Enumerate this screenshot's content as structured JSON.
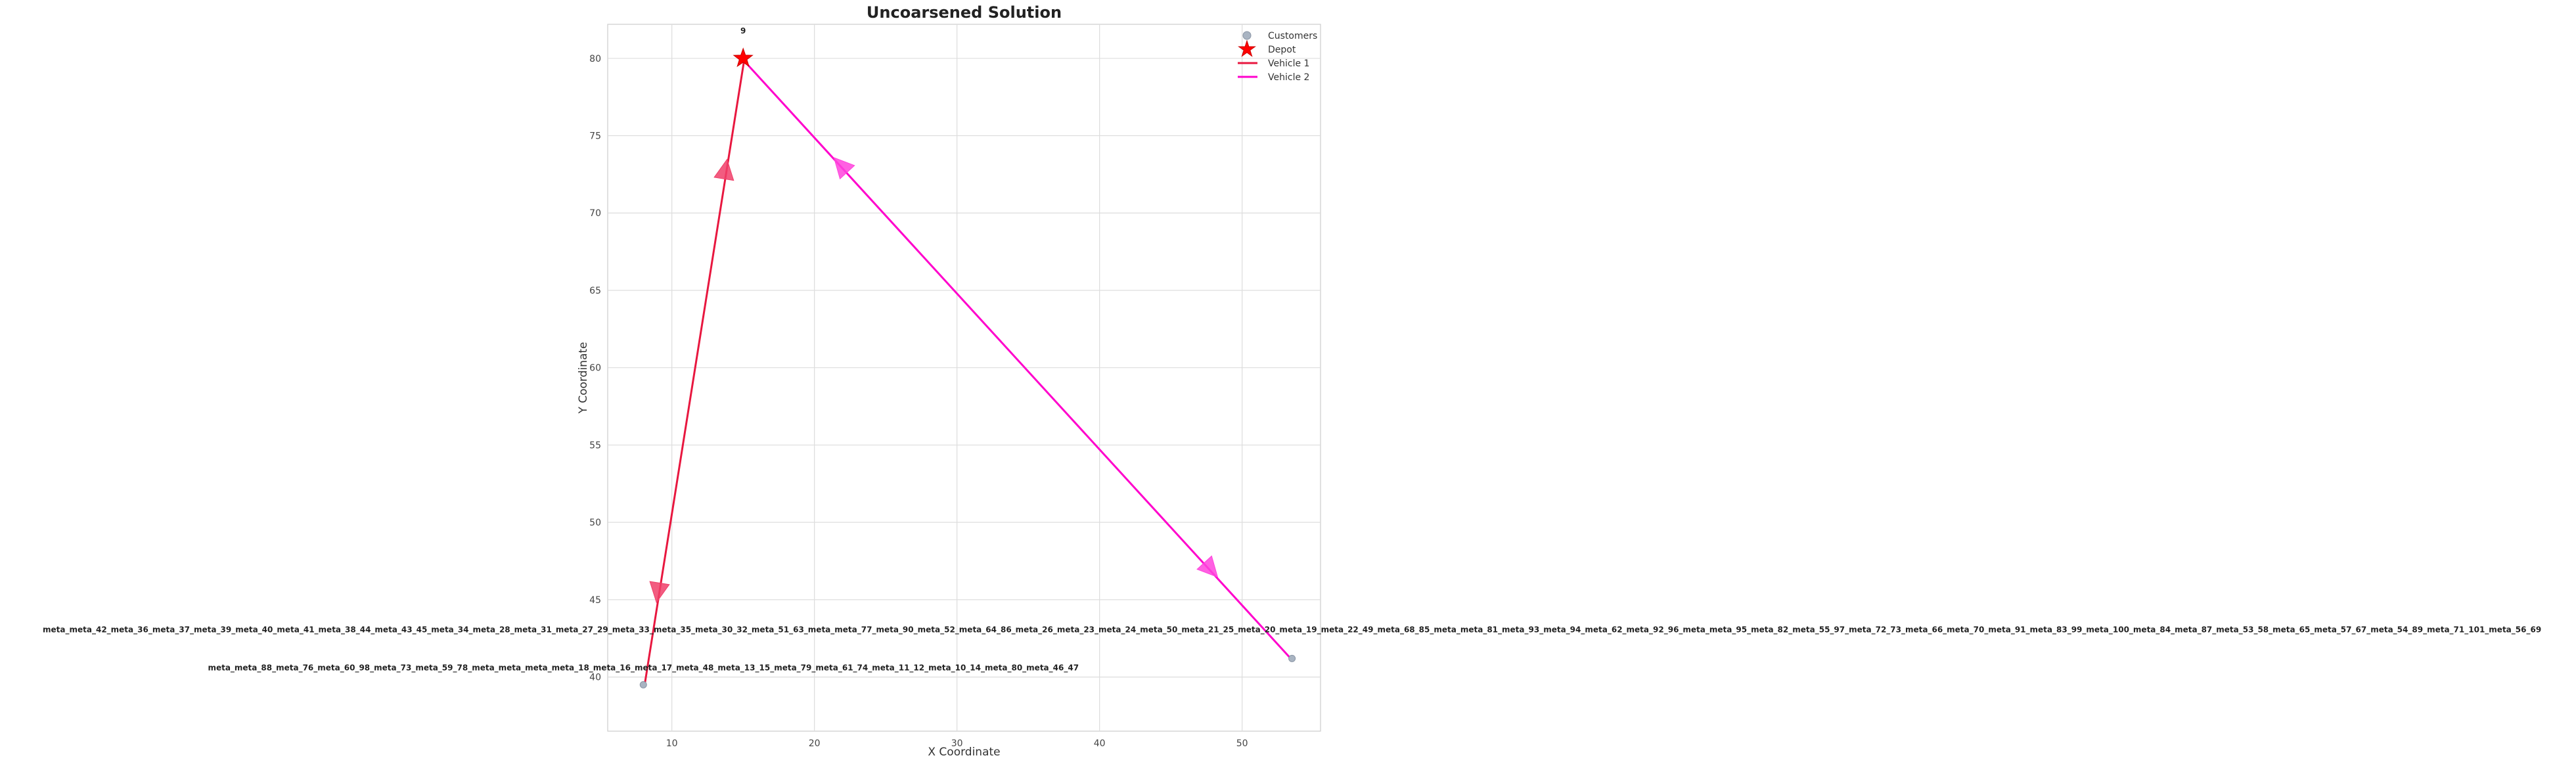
{
  "chart_data": {
    "type": "scatter",
    "title": "Uncoarsened Solution",
    "xlabel": "X Coordinate",
    "ylabel": "Y Coordinate",
    "xlim": [
      5.5,
      55.5
    ],
    "ylim": [
      36.5,
      82.2
    ],
    "xticks": [
      10,
      20,
      30,
      40,
      50
    ],
    "yticks": [
      40,
      45,
      50,
      55,
      60,
      65,
      70,
      75,
      80
    ],
    "grid": true,
    "legend_position": "top-right",
    "legend": [
      {
        "label": "Customers",
        "kind": "marker",
        "color": "#a9b4c2"
      },
      {
        "label": "Depot",
        "kind": "star",
        "color": "#ff0000"
      },
      {
        "label": "Vehicle 1",
        "kind": "line",
        "color": "#e8173f"
      },
      {
        "label": "Vehicle 2",
        "kind": "line",
        "color": "#ff00cc"
      }
    ],
    "depot": {
      "x": 15,
      "y": 80,
      "label": "9",
      "color": "#ff0000"
    },
    "customers": [
      {
        "x": 8,
        "y": 39.5,
        "label": "meta_meta_88_meta_76_meta_60_98_meta_73_meta_59_78_meta_meta_meta_meta_18_meta_16_meta_17_meta_48_meta_13_15_meta_79_meta_61_74_meta_11_12_meta_10_14_meta_80_meta_46_47"
      },
      {
        "x": 53.5,
        "y": 41.2,
        "label": "meta_meta_42_meta_36_meta_37_meta_39_meta_40_meta_41_meta_38_44_meta_43_45_meta_34_meta_28_meta_31_meta_27_29_meta_33_meta_35_meta_30_32_meta_51_63_meta_meta_77_meta_90_meta_52_meta_64_86_meta_26_meta_23_meta_24_meta_50_meta_21_25_meta_20_meta_19_meta_22_49_meta_68_85_meta_meta_81_meta_93_meta_94_meta_62_meta_92_96_meta_meta_95_meta_82_meta_55_97_meta_72_73_meta_66_meta_70_meta_91_meta_83_99_meta_100_meta_84_meta_87_meta_53_58_meta_65_meta_57_67_meta_54_89_meta_71_101_meta_56_69"
      }
    ],
    "series": [
      {
        "name": "Vehicle 1",
        "color": "#e8173f",
        "arrow_color": "#f0406a",
        "route": [
          [
            15,
            80
          ],
          [
            8,
            39.5
          ],
          [
            15,
            80
          ]
        ]
      },
      {
        "name": "Vehicle 2",
        "color": "#ff00cc",
        "arrow_color": "#ff44dd",
        "route": [
          [
            15,
            80
          ],
          [
            53.5,
            41.2
          ],
          [
            15,
            80
          ]
        ]
      }
    ]
  }
}
